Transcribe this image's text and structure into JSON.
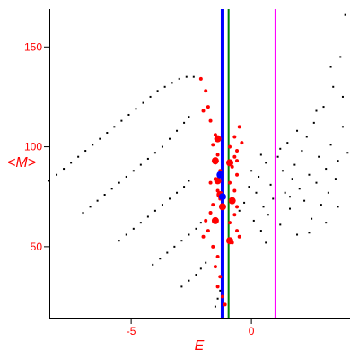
{
  "chart_data": {
    "type": "scatter",
    "xlabel": "E",
    "ylabel": "<M>",
    "xlim": [
      -8.4,
      4.1
    ],
    "ylim": [
      14,
      169
    ],
    "x_ticks": [
      -5,
      0
    ],
    "y_ticks": [
      50,
      100,
      150
    ],
    "x_tick_labels": [
      "-5",
      "0"
    ],
    "y_tick_labels": [
      "50",
      "100",
      "150"
    ],
    "grid": false,
    "colors": {
      "axes": "#000000",
      "labels": "#ff0000",
      "black_points": "#000000",
      "red_points": "#ff0000",
      "blue_line": "#0000ff",
      "green_line": "#008000",
      "magenta_line": "#ff00ff"
    },
    "vertical_lines": [
      {
        "x": -1.2,
        "color": "#0000ff",
        "width": 4
      },
      {
        "x": -0.95,
        "color": "#008000",
        "width": 2
      },
      {
        "x": 1.0,
        "color": "#ff00ff",
        "width": 2
      }
    ],
    "series": [
      {
        "marker": "small-black-dot",
        "color": "#000000",
        "points": [
          [
            -8.4,
            83
          ],
          [
            -8.1,
            86
          ],
          [
            -7.8,
            89
          ],
          [
            -7.5,
            92
          ],
          [
            -7.2,
            95
          ],
          [
            -6.9,
            98
          ],
          [
            -6.6,
            101
          ],
          [
            -6.3,
            104
          ],
          [
            -6.0,
            107
          ],
          [
            -5.7,
            110
          ],
          [
            -5.4,
            113
          ],
          [
            -5.1,
            116
          ],
          [
            -4.8,
            119
          ],
          [
            -4.5,
            122
          ],
          [
            -4.2,
            125
          ],
          [
            -3.9,
            128
          ],
          [
            -3.6,
            130
          ],
          [
            -3.3,
            132
          ],
          [
            -3.0,
            134
          ],
          [
            -2.7,
            135
          ],
          [
            -2.4,
            135
          ],
          [
            -7.0,
            67
          ],
          [
            -6.7,
            70
          ],
          [
            -6.4,
            73
          ],
          [
            -6.1,
            76
          ],
          [
            -5.8,
            79
          ],
          [
            -5.5,
            82
          ],
          [
            -5.2,
            85
          ],
          [
            -4.9,
            88
          ],
          [
            -4.6,
            91
          ],
          [
            -4.3,
            94
          ],
          [
            -4.0,
            97
          ],
          [
            -3.7,
            100
          ],
          [
            -3.4,
            104
          ],
          [
            -3.1,
            108
          ],
          [
            -2.8,
            112
          ],
          [
            -2.6,
            115
          ],
          [
            -5.5,
            53
          ],
          [
            -5.2,
            56
          ],
          [
            -4.9,
            59
          ],
          [
            -4.6,
            62
          ],
          [
            -4.3,
            65
          ],
          [
            -4.0,
            68
          ],
          [
            -3.7,
            71
          ],
          [
            -3.4,
            74
          ],
          [
            -3.1,
            77
          ],
          [
            -2.8,
            80
          ],
          [
            -2.6,
            83
          ],
          [
            -4.1,
            41
          ],
          [
            -3.8,
            44
          ],
          [
            -3.5,
            47
          ],
          [
            -3.2,
            50
          ],
          [
            -2.9,
            53
          ],
          [
            -2.6,
            56
          ],
          [
            -2.3,
            59
          ],
          [
            -2.1,
            62
          ],
          [
            -2.9,
            30
          ],
          [
            -2.6,
            33
          ],
          [
            -2.3,
            36
          ],
          [
            -2.1,
            39
          ],
          [
            -1.9,
            42
          ],
          [
            -1.5,
            20
          ],
          [
            -1.4,
            24
          ],
          [
            -1.3,
            28
          ],
          [
            -0.5,
            68
          ],
          [
            -0.3,
            72
          ],
          [
            -0.1,
            80
          ],
          [
            0.1,
            63
          ],
          [
            0.2,
            77
          ],
          [
            0.3,
            85
          ],
          [
            0.4,
            58
          ],
          [
            0.5,
            70
          ],
          [
            0.6,
            92
          ],
          [
            0.7,
            66
          ],
          [
            0.8,
            81
          ],
          [
            0.9,
            74
          ],
          [
            1.1,
            95
          ],
          [
            1.2,
            61
          ],
          [
            1.3,
            88
          ],
          [
            1.4,
            77
          ],
          [
            1.5,
            102
          ],
          [
            1.6,
            69
          ],
          [
            1.7,
            84
          ],
          [
            1.8,
            91
          ],
          [
            1.9,
            56
          ],
          [
            2.0,
            79
          ],
          [
            2.1,
            98
          ],
          [
            2.2,
            73
          ],
          [
            2.3,
            105
          ],
          [
            2.4,
            86
          ],
          [
            2.5,
            64
          ],
          [
            2.6,
            112
          ],
          [
            2.7,
            82
          ],
          [
            2.8,
            95
          ],
          [
            2.9,
            71
          ],
          [
            3.0,
            120
          ],
          [
            3.1,
            89
          ],
          [
            3.2,
            77
          ],
          [
            3.3,
            101
          ],
          [
            3.4,
            130
          ],
          [
            3.5,
            84
          ],
          [
            3.6,
            93
          ],
          [
            3.7,
            145
          ],
          [
            3.8,
            110
          ],
          [
            3.9,
            166
          ],
          [
            4.0,
            97
          ],
          [
            0.6,
            52
          ],
          [
            1.2,
            99
          ],
          [
            1.9,
            108
          ],
          [
            2.4,
            57
          ],
          [
            3.1,
            62
          ],
          [
            3.6,
            70
          ],
          [
            3.8,
            125
          ],
          [
            0.0,
            88
          ],
          [
            0.4,
            96
          ],
          [
            2.7,
            118
          ],
          [
            3.3,
            140
          ],
          [
            1.6,
            75
          ]
        ]
      },
      {
        "marker": "red-dot",
        "color": "#ff0000",
        "points": [
          [
            -2.1,
            134
          ],
          [
            -1.9,
            128
          ],
          [
            -1.8,
            120
          ],
          [
            -2.0,
            118
          ],
          [
            -1.7,
            113
          ],
          [
            -1.5,
            106
          ],
          [
            -1.6,
            101
          ],
          [
            -1.4,
            96
          ],
          [
            -1.5,
            92
          ],
          [
            -1.3,
            88
          ],
          [
            -1.5,
            84
          ],
          [
            -1.7,
            82
          ],
          [
            -1.4,
            78
          ],
          [
            -1.3,
            74
          ],
          [
            -1.6,
            71
          ],
          [
            -1.7,
            67
          ],
          [
            -1.9,
            63
          ],
          [
            -1.8,
            58
          ],
          [
            -2.0,
            55
          ],
          [
            -1.6,
            50
          ],
          [
            -1.4,
            45
          ],
          [
            -1.5,
            40
          ],
          [
            -1.3,
            35
          ],
          [
            -1.4,
            30
          ],
          [
            -1.2,
            25
          ],
          [
            -1.1,
            21
          ],
          [
            -0.9,
            100
          ],
          [
            -0.7,
            95
          ],
          [
            -0.8,
            90
          ],
          [
            -0.6,
            86
          ],
          [
            -0.9,
            82
          ],
          [
            -0.7,
            78
          ],
          [
            -0.8,
            74
          ],
          [
            -0.6,
            70
          ],
          [
            -0.7,
            66
          ],
          [
            -0.9,
            62
          ],
          [
            -0.6,
            58
          ],
          [
            -0.5,
            55
          ],
          [
            -0.8,
            52
          ],
          [
            -0.7,
            105
          ],
          [
            -0.5,
            110
          ],
          [
            -0.6,
            98
          ],
          [
            -0.4,
            102
          ],
          [
            -0.6,
            93
          ]
        ]
      },
      {
        "marker": "large-red-dot",
        "color": "#ff0000",
        "points": [
          [
            -1.4,
            104
          ],
          [
            -1.5,
            93
          ],
          [
            -1.4,
            83
          ],
          [
            -1.3,
            76
          ],
          [
            -1.2,
            70
          ],
          [
            -0.9,
            92
          ],
          [
            -0.8,
            73
          ],
          [
            -0.9,
            53
          ],
          [
            -1.5,
            63
          ]
        ]
      },
      {
        "marker": "blue-dot",
        "color": "#0000ff",
        "points": [
          [
            -1.3,
            86
          ],
          [
            -1.2,
            75
          ]
        ]
      }
    ]
  }
}
